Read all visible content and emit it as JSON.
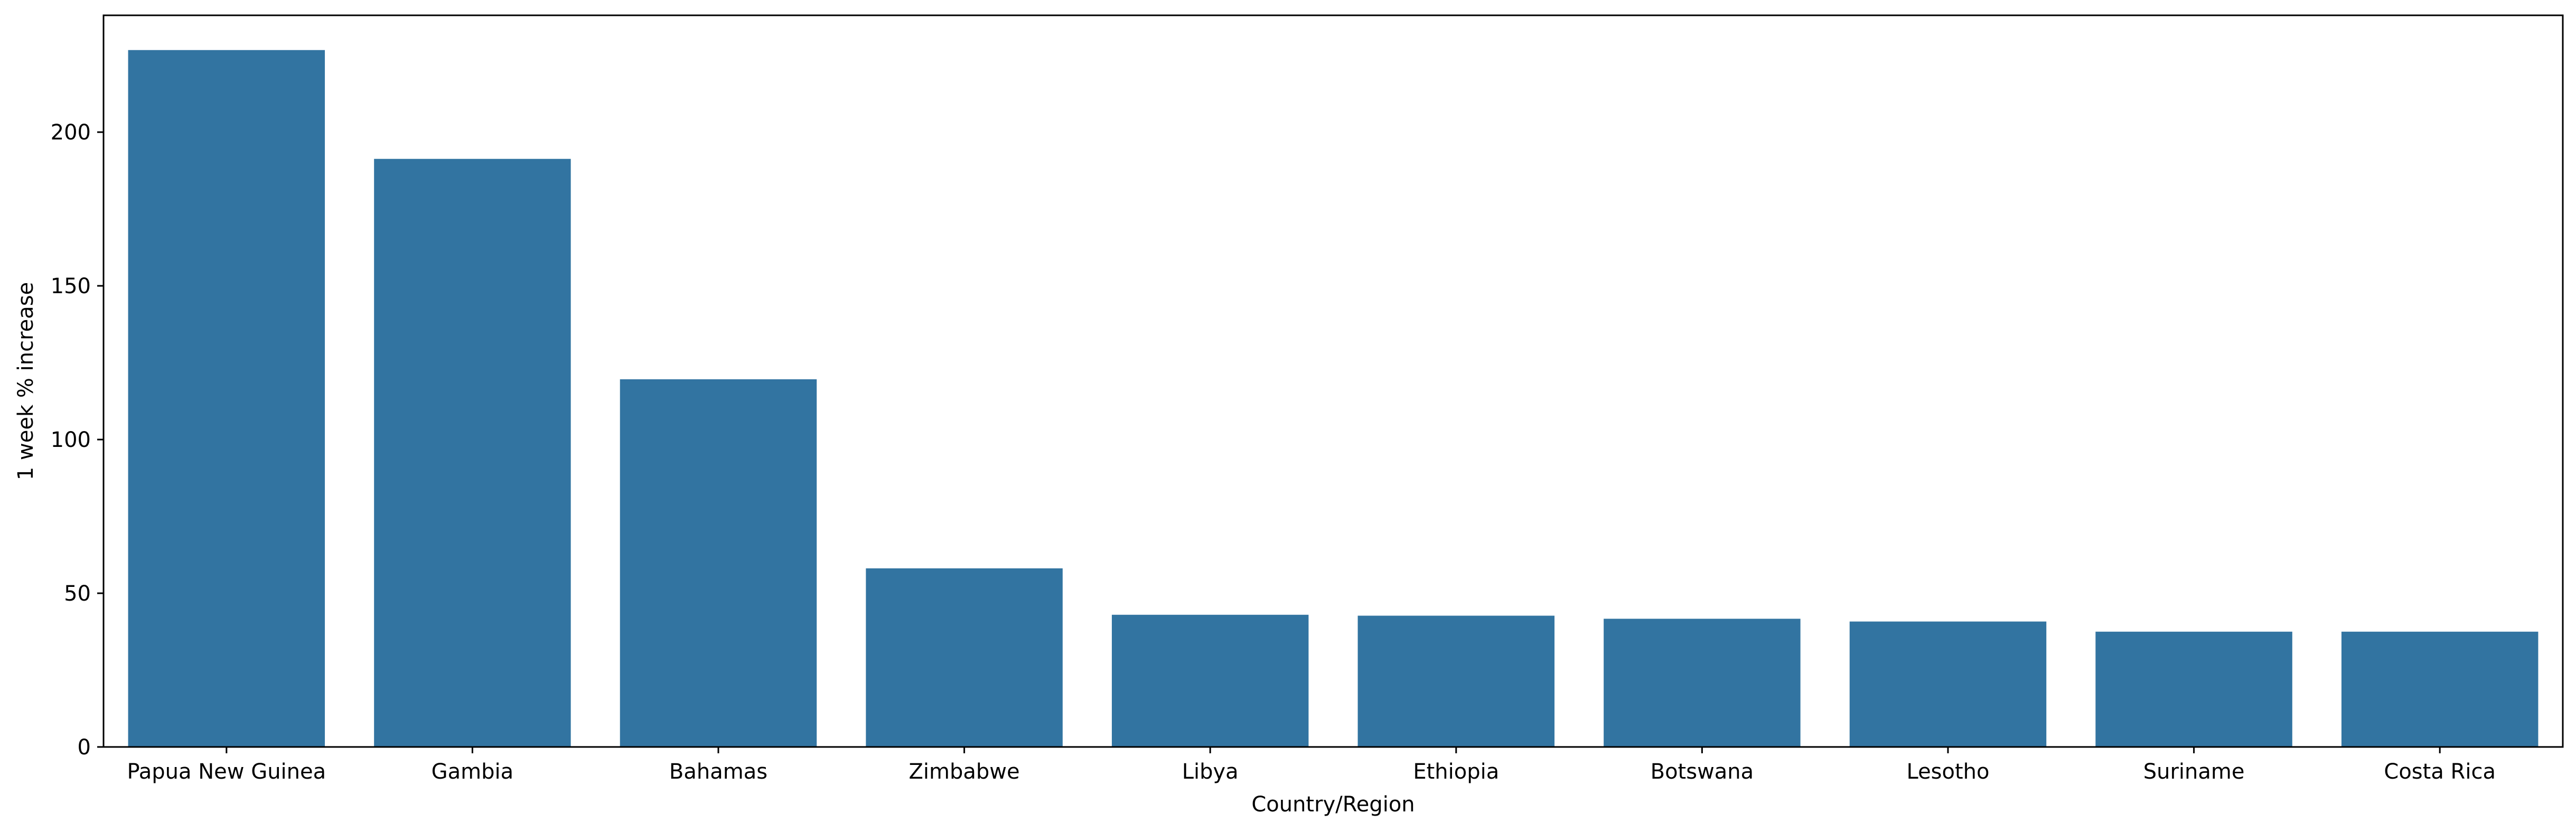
{
  "colors": {
    "bar": "#3274a1",
    "axis": "#000000",
    "background": "#ffffff"
  },
  "chart_data": {
    "type": "bar",
    "title": "",
    "xlabel": "Country/Region",
    "ylabel": "1 week % increase",
    "categories": [
      "Papua New Guinea",
      "Gambia",
      "Bahamas",
      "Zimbabwe",
      "Libya",
      "Ethiopia",
      "Botswana",
      "Lesotho",
      "Suriname",
      "Costa Rica"
    ],
    "values": [
      226.7,
      191.3,
      119.6,
      58.1,
      43.0,
      42.7,
      41.7,
      40.8,
      37.5,
      37.5
    ],
    "ylim": [
      0,
      238
    ],
    "yticks": [
      0,
      50,
      100,
      150,
      200
    ],
    "grid": false,
    "legend": "none"
  }
}
